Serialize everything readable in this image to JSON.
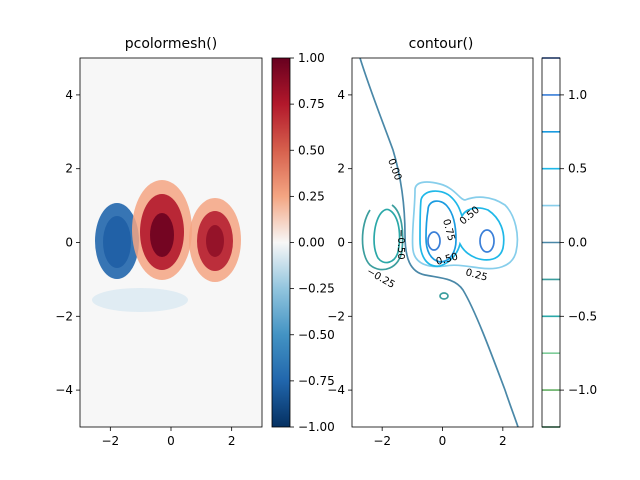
{
  "chart_data": [
    {
      "type": "heatmap",
      "title": "pcolormesh()",
      "colormap": "RdBu_r",
      "xlim": [
        -3,
        3
      ],
      "ylim": [
        -5,
        5
      ],
      "xticks": [
        -2,
        0,
        2
      ],
      "yticks": [
        -4,
        -2,
        0,
        2,
        4
      ],
      "xtick_labels": [
        "−2",
        "0",
        "2"
      ],
      "ytick_labels": [
        "−4",
        "−2",
        "0",
        "2",
        "4"
      ],
      "colorbar": {
        "vmin": -1.0,
        "vmax": 1.0,
        "ticks": [
          -1.0,
          -0.75,
          -0.5,
          -0.25,
          0.0,
          0.25,
          0.5,
          0.75,
          1.0
        ],
        "tick_labels": [
          "−1.00",
          "−0.75",
          "−0.50",
          "−0.25",
          "0.00",
          "0.25",
          "0.50",
          "0.75",
          "1.00"
        ]
      },
      "features": [
        {
          "kind": "negative-blob",
          "x": -1.8,
          "y": 0.0,
          "value": -0.7
        },
        {
          "kind": "positive-blob",
          "x": -0.2,
          "y": 0.2,
          "value": 1.0
        },
        {
          "kind": "positive-blob",
          "x": 1.5,
          "y": 0.0,
          "value": 0.85
        },
        {
          "kind": "negative-blob",
          "x": -0.3,
          "y": -1.5,
          "value": -0.15
        }
      ]
    },
    {
      "type": "contour",
      "title": "contour()",
      "colormap": "winter_r",
      "xlim": [
        -3,
        3
      ],
      "ylim": [
        -5,
        5
      ],
      "xticks": [
        -2,
        0,
        2
      ],
      "yticks": [
        -4,
        -2,
        0,
        2,
        4
      ],
      "xtick_labels": [
        "−2",
        "0",
        "2"
      ],
      "ytick_labels": [
        "−4",
        "−2",
        "0",
        "2",
        "4"
      ],
      "levels": [
        -1.25,
        -1.0,
        -0.75,
        -0.5,
        -0.25,
        0.0,
        0.25,
        0.5,
        0.75,
        1.0,
        1.25
      ],
      "level_colors": [
        "#2e8b57",
        "#66b066",
        "#7fcd9a",
        "#2ba8a8",
        "#3b9e9e",
        "#4a88a8",
        "#87ceeb",
        "#1fb8e8",
        "#1a9be0",
        "#3a7fd8",
        "#2a5fc0"
      ],
      "contour_labels": [
        "0.00",
        "0.25",
        "0.50",
        "0.75",
        "0.50",
        "0.50",
        "0.25",
        "−0.25",
        "−0.50"
      ],
      "colorbar": {
        "ticks": [
          -1.0,
          -0.5,
          0.0,
          0.5,
          1.0
        ],
        "tick_labels": [
          "−1.0",
          "−0.5",
          "0.0",
          "0.5",
          "1.0"
        ]
      }
    }
  ]
}
